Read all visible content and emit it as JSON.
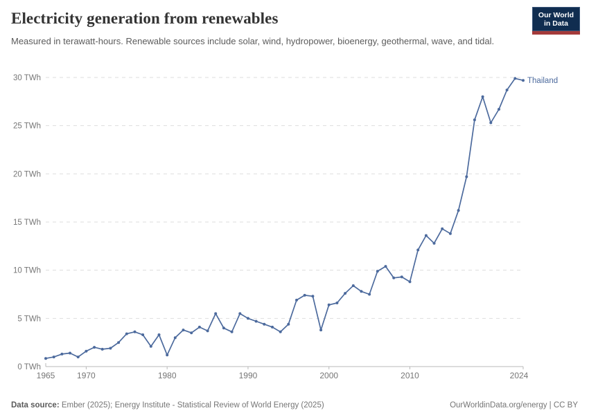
{
  "header": {
    "title": "Electricity generation from renewables",
    "subtitle": "Measured in terawatt-hours. Renewable sources include solar, wind, hydropower, bioenergy, geothermal, wave, and tidal.",
    "logo": {
      "line1": "Our World",
      "line2": "in Data"
    }
  },
  "chart_data": {
    "type": "line",
    "title": "Electricity generation from renewables",
    "unit": "TWh",
    "ylabel": "",
    "xlabel": "",
    "ylim": [
      0,
      30
    ],
    "yticks": [
      0,
      5,
      10,
      15,
      20,
      25,
      30
    ],
    "ytick_suffix": " TWh",
    "xticks": [
      1965,
      1970,
      1980,
      1990,
      2000,
      2010,
      2024
    ],
    "grid": "horizontal-dashed",
    "legend_position": "end-of-line-label",
    "x": [
      1965,
      1966,
      1967,
      1968,
      1969,
      1970,
      1971,
      1972,
      1973,
      1974,
      1975,
      1976,
      1977,
      1978,
      1979,
      1980,
      1981,
      1982,
      1983,
      1984,
      1985,
      1986,
      1987,
      1988,
      1989,
      1990,
      1991,
      1992,
      1993,
      1994,
      1995,
      1996,
      1997,
      1998,
      1999,
      2000,
      2001,
      2002,
      2003,
      2004,
      2005,
      2006,
      2007,
      2008,
      2009,
      2010,
      2011,
      2012,
      2013,
      2014,
      2015,
      2016,
      2017,
      2018,
      2019,
      2020,
      2021,
      2022,
      2023,
      2024
    ],
    "series": [
      {
        "name": "Thailand",
        "color": "#4c6a9d",
        "values": [
          0.85,
          1.0,
          1.3,
          1.4,
          1.0,
          1.6,
          2.0,
          1.8,
          1.9,
          2.5,
          3.4,
          3.6,
          3.3,
          2.1,
          3.3,
          1.2,
          3.0,
          3.8,
          3.5,
          4.1,
          3.7,
          5.5,
          4.0,
          3.6,
          5.5,
          5.0,
          4.7,
          4.4,
          4.1,
          3.6,
          4.4,
          6.9,
          7.4,
          7.3,
          3.8,
          6.4,
          6.6,
          7.6,
          8.4,
          7.8,
          7.5,
          9.9,
          10.4,
          9.2,
          9.3,
          8.8,
          12.1,
          13.6,
          12.8,
          14.3,
          13.8,
          16.2,
          19.7,
          25.6,
          28.0,
          25.3,
          26.7,
          28.7,
          29.9,
          29.7
        ]
      }
    ]
  },
  "footer": {
    "source_label": "Data source:",
    "source_text": " Ember (2025); Energy Institute - Statistical Review of World Energy (2025)",
    "link_text": "OurWorldinData.org/energy | CC BY"
  },
  "colors": {
    "line": "#4c6a9d",
    "series_label": "#4c6a9d",
    "grid": "#dddddd",
    "axis": "#b9b9b9",
    "tick_label": "#767676",
    "title": "#333333",
    "subtitle": "#5b5b5b",
    "logo_bg": "#102d50",
    "logo_stripe": "#a43a3a"
  }
}
